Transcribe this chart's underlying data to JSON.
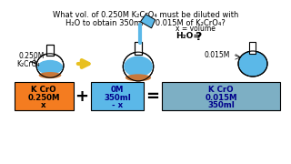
{
  "title_line1": "What vol. of 0.250M K₂CrO₄ must be diluted with",
  "title_line2": "H₂O to obtain 350ml of 0.015M of K₂CrO₄?",
  "bg_color": "#ffffff",
  "flask1_label1": "0.250M",
  "flask1_label2": "K₂CrO₄",
  "flask2_label1": "x = volume",
  "flask2_label2": "H₂O=",
  "flask2_label3": "?",
  "flask3_label1": "0.015M",
  "box1_color": "#f47c20",
  "box2_color": "#5bb8e8",
  "box3_color": "#7dafc4",
  "water_color": "#5bb8e8",
  "sediment_color": "#c8783a",
  "arrow_color": "#e8c020",
  "text_dark": "#00008b",
  "text_black": "#000000"
}
